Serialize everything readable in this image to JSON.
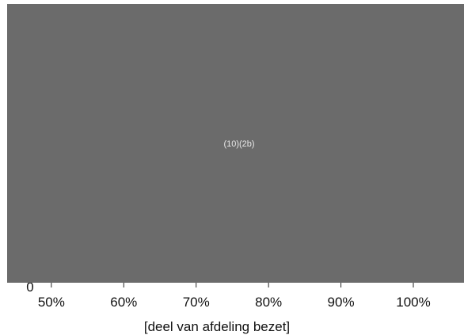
{
  "chart_data": {
    "type": "bar",
    "xlabel": "[deel van afdeling bezet]",
    "x_ticks": [
      "50%",
      "60%",
      "70%",
      "80%",
      "90%",
      "100%"
    ],
    "x_tick_values": [
      50,
      60,
      70,
      80,
      90,
      100
    ],
    "xlim": [
      44,
      107
    ],
    "partial_tick_label": "0",
    "redaction": {
      "label": "(10)(2b)",
      "color": "#6b6b6b"
    },
    "grid": false
  }
}
